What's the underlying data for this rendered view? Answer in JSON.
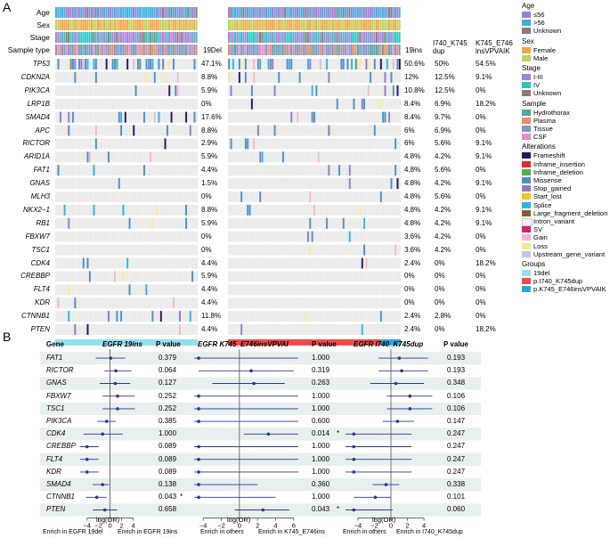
{
  "panel_a": {
    "letter": "A",
    "track_labels": [
      "Age",
      "Sex",
      "Stage",
      "Sample type"
    ],
    "genes": [
      "TP53",
      "CDKN2A",
      "PIK3CA",
      "LRP1B",
      "SMAD4",
      "APC",
      "RICTOR",
      "ARID1A",
      "FAT1",
      "GNAS",
      "MLH3",
      "NKX2−1",
      "RB1",
      "FBXW7",
      "TSC1",
      "CDK4",
      "CREBBP",
      "FLT4",
      "KDR",
      "CTNNB1",
      "PTEN"
    ],
    "col_headers": {
      "del19": "19Del",
      "ins19": "19ins",
      "i740": "I740_K745 dup",
      "k745": "K745_E746 insVPVAIK"
    },
    "pct_19del": [
      "47.1%",
      "8.8%",
      "5.9%",
      "0%",
      "17.6%",
      "8.8%",
      "2.9%",
      "5.9%",
      "4.4%",
      "1.5%",
      "0%",
      "8.8%",
      "5.9%",
      "0%",
      "0%",
      "4.4%",
      "5.9%",
      "4.4%",
      "4.4%",
      "11.8%",
      "4.4%"
    ],
    "pct_19ins": [
      "50.6%",
      "12%",
      "10.8%",
      "8.4%",
      "8.4%",
      "6%",
      "6%",
      "4.8%",
      "4.8%",
      "4.8%",
      "4.8%",
      "4.8%",
      "4.8%",
      "3.6%",
      "3.6%",
      "2.4%",
      "0%",
      "0%",
      "0%",
      "2.4%",
      "2.4%"
    ],
    "pct_i740": [
      "50%",
      "12.5%",
      "12.5%",
      "6.9%",
      "9.7%",
      "6.9%",
      "5.6%",
      "4.2%",
      "5.6%",
      "4.2%",
      "5.6%",
      "4.2%",
      "4.2%",
      "4.2%",
      "4.2%",
      "0%",
      "0%",
      "0%",
      "0%",
      "2.8%",
      "0%"
    ],
    "pct_k745": [
      "54.5%",
      "9.1%",
      "0%",
      "18.2%",
      "0%",
      "0%",
      "9.1%",
      "9.1%",
      "0%",
      "9.1%",
      "0%",
      "9.1%",
      "9.1%",
      "0%",
      "0%",
      "18.2%",
      "0%",
      "0%",
      "0%",
      "0%",
      "18.2%"
    ],
    "legend": [
      {
        "title": "Age",
        "items": [
          {
            "label": "≤56",
            "color": "#9a7fd1"
          },
          {
            "label": ">56",
            "color": "#3ab0e0"
          },
          {
            "label": "Unknown",
            "color": "#8c7a78"
          }
        ]
      },
      {
        "title": "Sex",
        "items": [
          {
            "label": "Female",
            "color": "#f5a54a"
          },
          {
            "label": "Male",
            "color": "#bcd35f"
          }
        ]
      },
      {
        "title": "Stage",
        "items": [
          {
            "label": "I-III",
            "color": "#a783d8"
          },
          {
            "label": "IV",
            "color": "#2ec4c4"
          },
          {
            "label": "Unknown",
            "color": "#8c7a78"
          }
        ]
      },
      {
        "title": "Sample",
        "items": [
          {
            "label": "Hydrothorax",
            "color": "#4ea99b"
          },
          {
            "label": "Plasma",
            "color": "#f08a5d"
          },
          {
            "label": "Tissue",
            "color": "#7d96c9"
          },
          {
            "label": "CSF",
            "color": "#e58bc3"
          }
        ]
      },
      {
        "title": "Alterations",
        "items": [
          {
            "label": "Frameshift",
            "color": "#1b1e5e"
          },
          {
            "label": "Inframe_insertion",
            "color": "#e02b2b"
          },
          {
            "label": "Inframe_deletion",
            "color": "#4caf50"
          },
          {
            "label": "Missense",
            "color": "#4f8fbf"
          },
          {
            "label": "Stop_gained",
            "color": "#8e7cc3"
          },
          {
            "label": "Start_lost",
            "color": "#f5c518"
          },
          {
            "label": "Splice",
            "color": "#2bb5e8"
          },
          {
            "label": "Large_fragment_deletion",
            "color": "#8b5a2b"
          },
          {
            "label": "Intron_variant",
            "color": "#f0f0f0"
          },
          {
            "label": "SV",
            "color": "#d6246e"
          },
          {
            "label": "Gain",
            "color": "#f6b6c4"
          },
          {
            "label": "Loss",
            "color": "#f7ea8c"
          },
          {
            "label": "Upstream_gene_variant",
            "color": "#c9c3e6"
          }
        ]
      },
      {
        "title": "Groups",
        "items": [
          {
            "label": "19del",
            "color": "#93def0"
          },
          {
            "label": "p.I740_K745dup",
            "color": "#ef4b4b"
          },
          {
            "label": "p.K745_E746insVPVAIK",
            "color": "#25a9e0"
          }
        ]
      }
    ]
  },
  "panel_b": {
    "letter": "B",
    "headers": {
      "gene": "Gene",
      "egfr1": "EGFR 19ins",
      "egfr2": "EGFR K745_E746insVPVAI",
      "egfr3": "EGFR I740_K745dup",
      "pvalue": "P value"
    },
    "genes": [
      "FAT1",
      "RICTOR",
      "GNAS",
      "FBXW7",
      "TSC1",
      "PIK3CA",
      "CDK4",
      "CREBBP",
      "FLT4",
      "KDR",
      "SMAD4",
      "CTNNB1",
      "PTEN"
    ],
    "p1": [
      "0.379",
      "0.064",
      "0.127",
      "0.252",
      "0.252",
      "0.385",
      "1.000",
      "0.089",
      "0.089",
      "0.089",
      "0.138",
      "0.043",
      "0.658"
    ],
    "p2": [
      "1.000",
      "0.319",
      "0.263",
      "1.000",
      "1.000",
      "0.600",
      "0.014",
      "1.000",
      "1.000",
      "1.000",
      "0.360",
      "1.000",
      "0.043"
    ],
    "p3": [
      "0.193",
      "0.193",
      "0.348",
      "0.106",
      "0.106",
      "0.147",
      "0.247",
      "0.247",
      "0.247",
      "0.247",
      "0.338",
      "0.101",
      "0.060"
    ],
    "star": "*",
    "axis_title": "log(OR)",
    "ticks1": [
      "−4",
      "−2",
      "0",
      "2",
      "4"
    ],
    "ticks2": [
      "−4",
      "−2",
      "0",
      "2",
      "4",
      "6"
    ],
    "ticks3": [
      "−4",
      "−2",
      "0",
      "2",
      "4"
    ],
    "enrich1_left": "Enrich in EGFR 19del",
    "enrich1_right": "Enrich in EGFR 19ins",
    "enrich2_left": "Enrich in others",
    "enrich2_right": "Enrich in K745_E746ins",
    "enrich3_left": "Enrich in others",
    "enrich3_right": "Enrich in I740_K745dup"
  },
  "forest_data": {
    "or1": [
      {
        "est": 0.1,
        "lo": -2.5,
        "hi": 2.6
      },
      {
        "est": 1.0,
        "lo": -1.0,
        "hi": 3.7
      },
      {
        "est": 0.9,
        "lo": -1.8,
        "hi": 3.5
      },
      {
        "est": 1.3,
        "lo": -1.3,
        "hi": 4.3
      },
      {
        "est": 1.3,
        "lo": -1.3,
        "hi": 4.3
      },
      {
        "est": -0.6,
        "lo": -2.2,
        "hi": 1.0
      },
      {
        "est": -1.3,
        "lo": -4.6,
        "hi": 2.2
      },
      {
        "est": -4.0,
        "lo": -5.2,
        "hi": -2.0
      },
      {
        "est": -4.0,
        "lo": -5.2,
        "hi": -2.0
      },
      {
        "est": -4.0,
        "lo": -5.2,
        "hi": -2.0
      },
      {
        "est": -1.3,
        "lo": -3.0,
        "hi": -0.2
      },
      {
        "est": -2.3,
        "lo": -4.2,
        "hi": -0.6
      },
      {
        "est": -0.9,
        "lo": -3.0,
        "hi": 1.2
      }
    ],
    "or2": [
      {
        "est": -4.5,
        "lo": -5.5,
        "hi": 6.5
      },
      {
        "est": 1.3,
        "lo": -4.5,
        "hi": 6.0
      },
      {
        "est": 1.6,
        "lo": -3.0,
        "hi": 5.0
      },
      {
        "est": -4.5,
        "lo": -5.5,
        "hi": 6.5
      },
      {
        "est": -4.5,
        "lo": -5.5,
        "hi": 6.5
      },
      {
        "est": -4.5,
        "lo": -5.5,
        "hi": 6.5
      },
      {
        "est": 3.2,
        "lo": 0.5,
        "hi": 6.5
      },
      {
        "est": -4.5,
        "lo": -5.5,
        "hi": 6.5
      },
      {
        "est": -4.5,
        "lo": -5.5,
        "hi": 6.5
      },
      {
        "est": -4.5,
        "lo": -5.5,
        "hi": 6.5
      },
      {
        "est": -4.5,
        "lo": -5.5,
        "hi": 2.0
      },
      {
        "est": -4.5,
        "lo": -5.5,
        "hi": 4.0
      },
      {
        "est": 2.6,
        "lo": -0.5,
        "hi": 5.5
      }
    ],
    "or3": [
      {
        "est": 1.0,
        "lo": -1.5,
        "hi": 4.5
      },
      {
        "est": 1.3,
        "lo": -1.5,
        "hi": 4.5
      },
      {
        "est": 0.6,
        "lo": -2.5,
        "hi": 4.0
      },
      {
        "est": 2.3,
        "lo": -0.5,
        "hi": 5.0
      },
      {
        "est": 2.3,
        "lo": -0.5,
        "hi": 5.0
      },
      {
        "est": 0.8,
        "lo": -1.0,
        "hi": 2.8
      },
      {
        "est": -4.5,
        "lo": -5.5,
        "hi": 2.5
      },
      {
        "est": -4.5,
        "lo": -5.5,
        "hi": 2.5
      },
      {
        "est": -4.5,
        "lo": -5.5,
        "hi": 2.5
      },
      {
        "est": -4.5,
        "lo": -5.5,
        "hi": 2.5
      },
      {
        "est": -0.6,
        "lo": -2.2,
        "hi": 1.0
      },
      {
        "est": -1.9,
        "lo": -4.5,
        "hi": 0.0
      },
      {
        "est": -4.5,
        "lo": -5.5,
        "hi": 0.2
      }
    ]
  }
}
